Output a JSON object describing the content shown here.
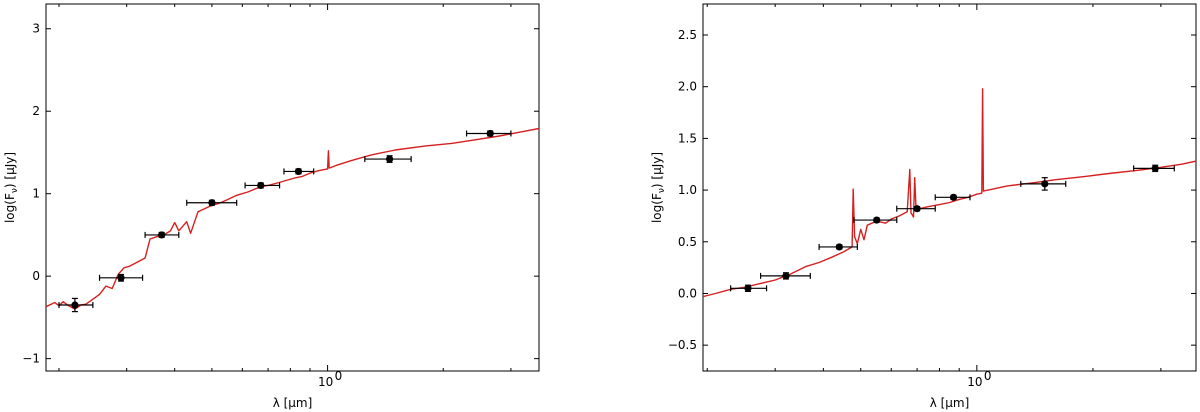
{
  "chart_data": [
    {
      "type": "line",
      "xscale": "log",
      "xlim": [
        0.185,
        3.55
      ],
      "ylim": [
        -1.15,
        3.3
      ],
      "xticks": [
        {
          "value": 1.0,
          "label": "10"
        }
      ],
      "yticks": [
        {
          "value": -1,
          "label": "−1"
        },
        {
          "value": 0,
          "label": "0"
        },
        {
          "value": 1,
          "label": "1"
        },
        {
          "value": 2,
          "label": "2"
        },
        {
          "value": 3,
          "label": "3"
        }
      ],
      "xlabel": "λ [μm]",
      "ylabel": "log(F",
      "ylabel_sub": "ν",
      "ylabel_unit": ") [μJy]",
      "x_minor_ticks": [
        0.2,
        0.3,
        0.4,
        0.5,
        0.6,
        0.7,
        0.8,
        0.9,
        2,
        3
      ],
      "series_color": "#d62020",
      "model_curve": [
        [
          0.185,
          -0.37
        ],
        [
          0.195,
          -0.32
        ],
        [
          0.2,
          -0.36
        ],
        [
          0.205,
          -0.31
        ],
        [
          0.212,
          -0.36
        ],
        [
          0.22,
          -0.4
        ],
        [
          0.228,
          -0.35
        ],
        [
          0.235,
          -0.34
        ],
        [
          0.245,
          -0.28
        ],
        [
          0.255,
          -0.22
        ],
        [
          0.265,
          -0.12
        ],
        [
          0.275,
          -0.15
        ],
        [
          0.285,
          0.02
        ],
        [
          0.295,
          0.1
        ],
        [
          0.305,
          0.12
        ],
        [
          0.32,
          0.17
        ],
        [
          0.335,
          0.22
        ],
        [
          0.345,
          0.45
        ],
        [
          0.36,
          0.48
        ],
        [
          0.375,
          0.5
        ],
        [
          0.39,
          0.55
        ],
        [
          0.4,
          0.65
        ],
        [
          0.41,
          0.55
        ],
        [
          0.43,
          0.66
        ],
        [
          0.44,
          0.52
        ],
        [
          0.46,
          0.78
        ],
        [
          0.48,
          0.82
        ],
        [
          0.5,
          0.86
        ],
        [
          0.52,
          0.88
        ],
        [
          0.55,
          0.93
        ],
        [
          0.58,
          0.98
        ],
        [
          0.62,
          1.02
        ],
        [
          0.65,
          1.06
        ],
        [
          0.68,
          1.09
        ],
        [
          0.7,
          1.1
        ],
        [
          0.74,
          1.13
        ],
        [
          0.78,
          1.16
        ],
        [
          0.82,
          1.19
        ],
        [
          0.86,
          1.21
        ],
        [
          0.9,
          1.25
        ],
        [
          0.95,
          1.28
        ],
        [
          1.0,
          1.3
        ],
        [
          1.005,
          1.52
        ],
        [
          1.01,
          1.31
        ],
        [
          1.05,
          1.34
        ],
        [
          1.15,
          1.4
        ],
        [
          1.3,
          1.47
        ],
        [
          1.5,
          1.53
        ],
        [
          1.8,
          1.58
        ],
        [
          2.1,
          1.61
        ],
        [
          2.4,
          1.65
        ],
        [
          2.8,
          1.7
        ],
        [
          3.2,
          1.75
        ],
        [
          3.55,
          1.79
        ]
      ],
      "photometry": [
        {
          "x": 0.22,
          "y": -0.35,
          "xerr": [
            0.02,
            0.025
          ],
          "yerr": 0.08
        },
        {
          "x": 0.29,
          "y": -0.02,
          "xerr": [
            0.035,
            0.04
          ],
          "yerr": 0.04
        },
        {
          "x": 0.37,
          "y": 0.5,
          "xerr": [
            0.035,
            0.04
          ],
          "yerr": 0.03
        },
        {
          "x": 0.5,
          "y": 0.89,
          "xerr": [
            0.07,
            0.08
          ],
          "yerr": 0.03
        },
        {
          "x": 0.67,
          "y": 1.1,
          "xerr": [
            0.06,
            0.08
          ],
          "yerr": 0.03
        },
        {
          "x": 0.84,
          "y": 1.27,
          "xerr": [
            0.07,
            0.08
          ],
          "yerr": 0.03
        },
        {
          "x": 1.45,
          "y": 1.42,
          "xerr": [
            0.2,
            0.2
          ],
          "yerr": 0.04
        },
        {
          "x": 2.65,
          "y": 1.73,
          "xerr": [
            0.35,
            0.35
          ],
          "yerr": 0.03
        }
      ]
    },
    {
      "type": "line",
      "xscale": "log",
      "xlim": [
        0.195,
        3.7
      ],
      "ylim": [
        -0.75,
        2.8
      ],
      "xticks": [
        {
          "value": 1.0,
          "label": "10"
        }
      ],
      "yticks": [
        {
          "value": -0.5,
          "label": "−0.5"
        },
        {
          "value": 0.0,
          "label": "0.0"
        },
        {
          "value": 0.5,
          "label": "0.5"
        },
        {
          "value": 1.0,
          "label": "1.0"
        },
        {
          "value": 1.5,
          "label": "1.5"
        },
        {
          "value": 2.0,
          "label": "2.0"
        },
        {
          "value": 2.5,
          "label": "2.5"
        }
      ],
      "xlabel": "λ [μm]",
      "ylabel": "log(F",
      "ylabel_sub": "ν",
      "ylabel_unit": ") [μJy]",
      "x_minor_ticks": [
        0.2,
        0.3,
        0.4,
        0.5,
        0.6,
        0.7,
        0.8,
        0.9,
        2,
        3
      ],
      "series_color": "#d62020",
      "model_curve": [
        [
          0.195,
          -0.03
        ],
        [
          0.21,
          0.0
        ],
        [
          0.23,
          0.04
        ],
        [
          0.25,
          0.06
        ],
        [
          0.27,
          0.09
        ],
        [
          0.3,
          0.13
        ],
        [
          0.33,
          0.19
        ],
        [
          0.36,
          0.26
        ],
        [
          0.39,
          0.3
        ],
        [
          0.42,
          0.35
        ],
        [
          0.45,
          0.4
        ],
        [
          0.475,
          0.45
        ],
        [
          0.478,
          1.01
        ],
        [
          0.482,
          0.55
        ],
        [
          0.49,
          0.48
        ],
        [
          0.5,
          0.62
        ],
        [
          0.51,
          0.52
        ],
        [
          0.52,
          0.66
        ],
        [
          0.55,
          0.7
        ],
        [
          0.58,
          0.68
        ],
        [
          0.6,
          0.72
        ],
        [
          0.63,
          0.75
        ],
        [
          0.66,
          0.79
        ],
        [
          0.67,
          1.2
        ],
        [
          0.675,
          0.78
        ],
        [
          0.685,
          0.74
        ],
        [
          0.69,
          1.12
        ],
        [
          0.695,
          0.85
        ],
        [
          0.71,
          0.82
        ],
        [
          0.75,
          0.84
        ],
        [
          0.8,
          0.86
        ],
        [
          0.85,
          0.88
        ],
        [
          0.9,
          0.91
        ],
        [
          0.95,
          0.93
        ],
        [
          1.0,
          0.96
        ],
        [
          1.03,
          0.97
        ],
        [
          1.035,
          1.98
        ],
        [
          1.04,
          0.99
        ],
        [
          1.1,
          1.01
        ],
        [
          1.2,
          1.04
        ],
        [
          1.4,
          1.07
        ],
        [
          1.6,
          1.1
        ],
        [
          1.9,
          1.13
        ],
        [
          2.2,
          1.16
        ],
        [
          2.6,
          1.19
        ],
        [
          3.0,
          1.22
        ],
        [
          3.4,
          1.25
        ],
        [
          3.7,
          1.28
        ]
      ],
      "photometry": [
        {
          "x": 0.255,
          "y": 0.05,
          "xerr": [
            0.025,
            0.03
          ],
          "yerr": 0.03
        },
        {
          "x": 0.32,
          "y": 0.17,
          "xerr": [
            0.045,
            0.05
          ],
          "yerr": 0.03
        },
        {
          "x": 0.44,
          "y": 0.45,
          "xerr": [
            0.05,
            0.05
          ],
          "yerr": 0.02
        },
        {
          "x": 0.55,
          "y": 0.71,
          "xerr": [
            0.07,
            0.07
          ],
          "yerr": 0.02
        },
        {
          "x": 0.7,
          "y": 0.82,
          "xerr": [
            0.08,
            0.08
          ],
          "yerr": 0.02
        },
        {
          "x": 0.87,
          "y": 0.93,
          "xerr": [
            0.09,
            0.09
          ],
          "yerr": 0.02
        },
        {
          "x": 1.5,
          "y": 1.06,
          "xerr": [
            0.2,
            0.2
          ],
          "yerr": 0.06
        },
        {
          "x": 2.9,
          "y": 1.21,
          "xerr": [
            0.35,
            0.35
          ],
          "yerr": 0.03
        }
      ]
    }
  ]
}
